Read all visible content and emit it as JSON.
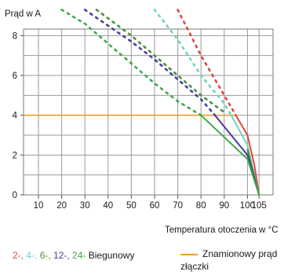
{
  "chart_data": {
    "type": "line",
    "ylabel": "Prąd w A",
    "xlabel": "Temperatura otoczenia w °C",
    "xlim": [
      0,
      110
    ],
    "ylim": [
      0,
      9
    ],
    "x_ticks": [
      10,
      20,
      30,
      40,
      50,
      60,
      70,
      80,
      90,
      100,
      105
    ],
    "y_ticks": [
      0,
      2,
      4,
      6,
      8
    ],
    "grid": true,
    "rated_current": {
      "name": "Znamionowy prąd złączki",
      "value": 4,
      "color": "#f39c2b"
    },
    "series": [
      {
        "name": "2-",
        "color": "#e2473b",
        "points": [
          [
            70,
            9.3
          ],
          [
            80,
            7.0
          ],
          [
            90,
            5.0
          ],
          [
            95,
            4.0
          ],
          [
            100,
            3.0
          ],
          [
            103,
            1.5
          ],
          [
            105,
            0
          ]
        ]
      },
      {
        "name": "4-",
        "color": "#6fd3c2",
        "points": [
          [
            60,
            9.3
          ],
          [
            70,
            7.8
          ],
          [
            80,
            6.0
          ],
          [
            90,
            4.6
          ],
          [
            93,
            4.0
          ],
          [
            100,
            2.5
          ],
          [
            105,
            0
          ]
        ]
      },
      {
        "name": "6-",
        "color": "#4a8f3f",
        "points": [
          [
            35,
            9.3
          ],
          [
            50,
            8.0
          ],
          [
            60,
            7.0
          ],
          [
            70,
            6.0
          ],
          [
            80,
            5.0
          ],
          [
            90,
            4.15
          ],
          [
            100,
            2.3
          ],
          [
            105,
            0
          ]
        ]
      },
      {
        "name": "12-",
        "color": "#4b3a9c",
        "points": [
          [
            30,
            9.3
          ],
          [
            40,
            8.5
          ],
          [
            50,
            7.7
          ],
          [
            60,
            6.8
          ],
          [
            70,
            5.8
          ],
          [
            80,
            4.8
          ],
          [
            86,
            4.0
          ],
          [
            100,
            2.0
          ],
          [
            105,
            0
          ]
        ]
      },
      {
        "name": "24-",
        "color": "#3daa47",
        "points": [
          [
            20,
            9.3
          ],
          [
            30,
            8.6
          ],
          [
            40,
            7.6
          ],
          [
            50,
            6.6
          ],
          [
            60,
            5.6
          ],
          [
            70,
            4.7
          ],
          [
            80,
            4.0
          ],
          [
            100,
            1.8
          ],
          [
            105,
            0
          ]
        ]
      }
    ],
    "legend": {
      "prefix_items": [
        "2-, ",
        "4-, ",
        "6-, ",
        "12-, ",
        "24- "
      ],
      "suffix": "Biegunowy"
    }
  }
}
